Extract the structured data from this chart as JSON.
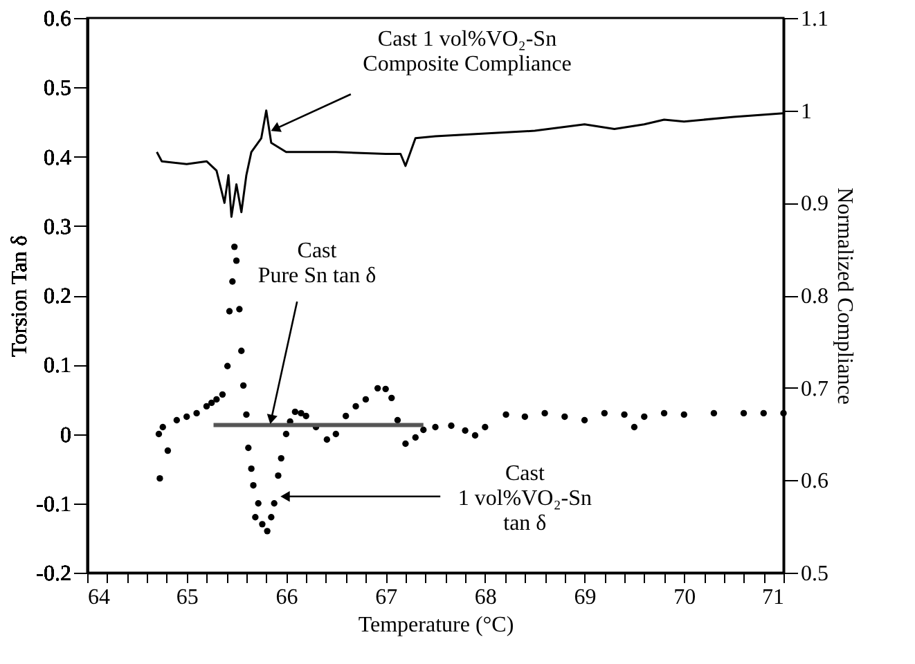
{
  "chart_data": {
    "type": "scatter",
    "xlabel": "Temperature (°C)",
    "ylabel": "Torsion Tan δ",
    "y2label": "Normalized Compliance",
    "xlim": [
      64,
      71
    ],
    "xticks": [
      64,
      {
        "value": 64.2,
        "label": null
      },
      {
        "value": 64.4,
        "label": null
      },
      {
        "value": 64.6,
        "label": null
      },
      {
        "value": 64.8,
        "label": null
      },
      65,
      {
        "value": 65.2,
        "label": null
      },
      {
        "value": 65.4,
        "label": null
      },
      {
        "value": 65.6,
        "label": null
      },
      {
        "value": 65.8,
        "label": null
      },
      66,
      {
        "value": 66.2,
        "label": null
      },
      {
        "value": 66.4,
        "label": null
      },
      {
        "value": 66.6,
        "label": null
      },
      {
        "value": 66.8,
        "label": null
      },
      67,
      {
        "value": 67.2,
        "label": null
      },
      {
        "value": 67.4,
        "label": null
      },
      {
        "value": 67.6,
        "label": null
      },
      {
        "value": 67.8,
        "label": null
      },
      68,
      {
        "value": 68.2,
        "label": null
      },
      {
        "value": 68.4,
        "label": null
      },
      {
        "value": 68.6,
        "label": null
      },
      {
        "value": 68.8,
        "label": null
      },
      69,
      {
        "value": 69.2,
        "label": null
      },
      {
        "value": 69.4,
        "label": null
      },
      {
        "value": 69.6,
        "label": null
      },
      {
        "value": 69.8,
        "label": null
      },
      70,
      {
        "value": 70.2,
        "label": null
      },
      {
        "value": 70.4,
        "label": null
      },
      {
        "value": 70.6,
        "label": null
      },
      {
        "value": 70.8,
        "label": null
      },
      71
    ],
    "ylim": [
      -0.2,
      0.6
    ],
    "yticks": [
      -0.2,
      -0.1,
      0,
      0.1,
      0.2,
      0.3,
      0.4,
      0.5,
      0.6
    ],
    "y2lim": [
      0.5,
      1.1
    ],
    "y2ticks": [
      0.5,
      0.6,
      0.7,
      0.8,
      0.9,
      1,
      1.1
    ],
    "grid": false,
    "series": [
      {
        "marker": "circle",
        "color": "#000000",
        "x": [
          64.72,
          64.73,
          64.76,
          64.81,
          64.9,
          65.0,
          65.1,
          65.2,
          65.25,
          65.3,
          65.36,
          65.41,
          65.43,
          65.46,
          65.48,
          65.5,
          65.53,
          65.55,
          65.57,
          65.6,
          65.62,
          65.65,
          65.67,
          65.69,
          65.72,
          65.76,
          65.81,
          65.85,
          65.88,
          65.92,
          65.95,
          66.0,
          66.04,
          66.09,
          66.15,
          66.2,
          66.3,
          66.41,
          66.5,
          66.6,
          66.7,
          66.8,
          66.92,
          67.0,
          67.06,
          67.12,
          67.2,
          67.3,
          67.38,
          67.5,
          67.66,
          67.8,
          67.9,
          68.0,
          68.21,
          68.4,
          68.6,
          68.8,
          69.0,
          69.2,
          69.4,
          69.5,
          69.6,
          69.8,
          70.0,
          70.3,
          70.6,
          70.8,
          71.0
        ],
        "values": [
          0.0,
          -0.064,
          0.01,
          -0.024,
          0.02,
          0.025,
          0.03,
          0.04,
          0.045,
          0.05,
          0.057,
          0.098,
          0.177,
          0.22,
          0.27,
          0.25,
          0.18,
          0.12,
          0.07,
          0.028,
          -0.02,
          -0.05,
          -0.074,
          -0.12,
          -0.1,
          -0.13,
          -0.14,
          -0.12,
          -0.1,
          -0.06,
          -0.035,
          0.0,
          0.018,
          0.032,
          0.03,
          0.026,
          0.01,
          -0.008,
          0.0,
          0.026,
          0.04,
          0.05,
          0.066,
          0.065,
          0.052,
          0.02,
          -0.014,
          -0.005,
          0.006,
          0.01,
          0.012,
          0.005,
          -0.002,
          0.01,
          0.028,
          0.025,
          0.03,
          0.025,
          0.02,
          0.03,
          0.028,
          0.01,
          0.025,
          0.03,
          0.028,
          0.03,
          0.03,
          0.03,
          0.03
        ]
      },
      {
        "type": "line",
        "marker": "none",
        "line_style": "solid",
        "color": "#555555",
        "x": [
          65.27,
          67.38
        ],
        "values": [
          0.013,
          0.013
        ]
      },
      {
        "type": "line",
        "marker": "none",
        "line_style": "solid",
        "axis": "y2",
        "color": "#000000",
        "x": [
          64.7,
          64.75,
          65.0,
          65.2,
          65.3,
          65.38,
          65.42,
          65.45,
          65.5,
          65.55,
          65.6,
          65.65,
          65.75,
          65.8,
          65.85,
          66.0,
          66.5,
          67.0,
          67.15,
          67.2,
          67.3,
          67.5,
          68.0,
          68.5,
          69.0,
          69.3,
          69.6,
          69.8,
          70.0,
          70.5,
          71.0
        ],
        "values": [
          0.955,
          0.945,
          0.942,
          0.945,
          0.935,
          0.9,
          0.93,
          0.885,
          0.92,
          0.89,
          0.93,
          0.955,
          0.97,
          1.0,
          0.965,
          0.955,
          0.955,
          0.953,
          0.953,
          0.94,
          0.97,
          0.972,
          0.975,
          0.978,
          0.985,
          0.98,
          0.985,
          0.99,
          0.988,
          0.993,
          0.997
        ]
      }
    ],
    "annotations": [
      {
        "text": "Cast 1 vol%VO₂-Sn\nComposite Compliance",
        "x": 65.85,
        "y": 0.44
      },
      {
        "text": "Cast\nPure Sn tan δ",
        "x": 65.81,
        "y": 0.021
      },
      {
        "text": "Cast\n1 vol%VO₂-Sn\ntan δ",
        "x": 65.95,
        "y": -0.09
      }
    ]
  }
}
